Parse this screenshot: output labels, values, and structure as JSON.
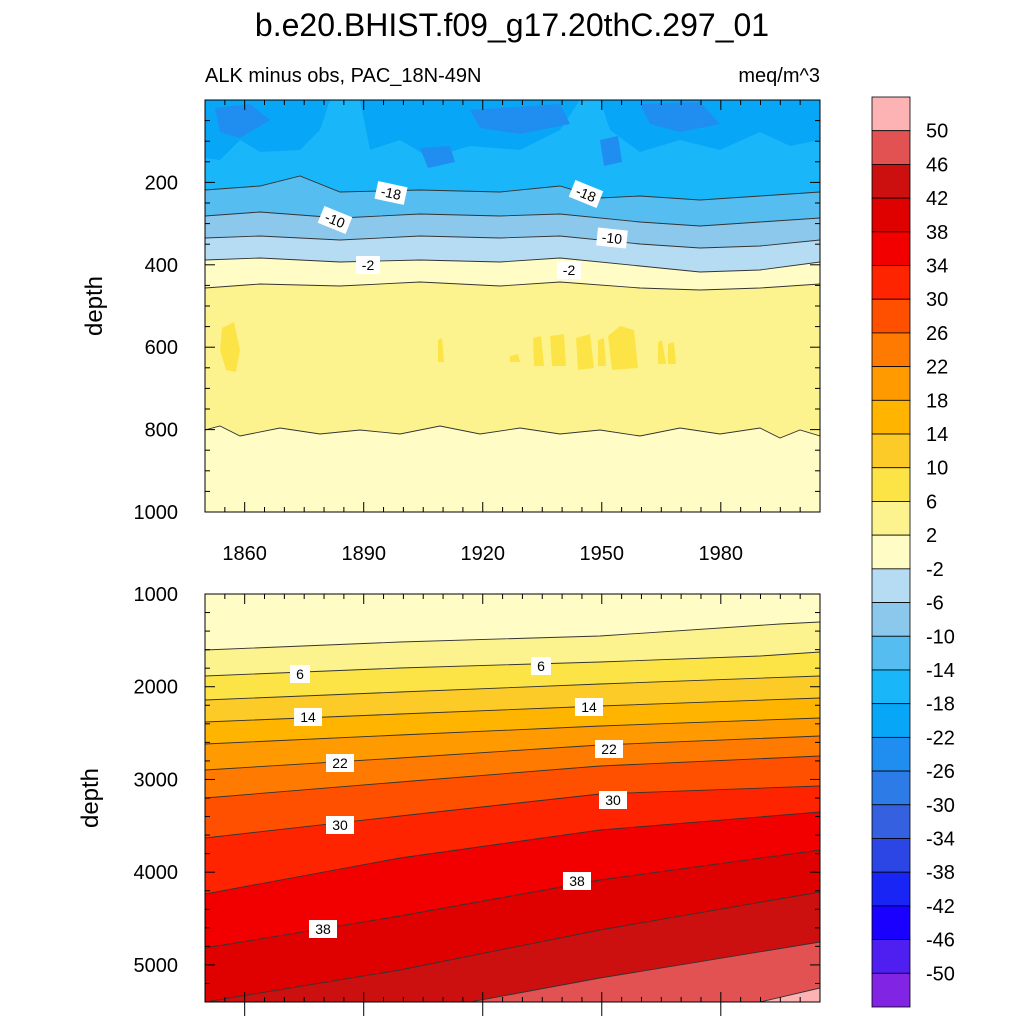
{
  "chart_data": {
    "type": "heatmap",
    "title": "b.e20.BHIST.f09_g17.20thC.297_01",
    "left_subtitle": "ALK minus obs, PAC_18N-49N",
    "right_subtitle": "meq/m^3",
    "ylabel": "depth",
    "xlim": [
      1850,
      2005
    ],
    "x_ticks": [
      "1860",
      "1890",
      "1920",
      "1950",
      "1980"
    ],
    "colorbar": {
      "labels": [
        "50",
        "46",
        "42",
        "38",
        "34",
        "30",
        "26",
        "22",
        "18",
        "14",
        "10",
        "6",
        "2",
        "-2",
        "-6",
        "-10",
        "-14",
        "-18",
        "-22",
        "-26",
        "-30",
        "-34",
        "-38",
        "-42",
        "-46",
        "-50"
      ],
      "colors": [
        "#fdb3b3",
        "#e25252",
        "#cc1010",
        "#df0000",
        "#f20000",
        "#ff2400",
        "#ff5000",
        "#ff7a00",
        "#ff9a00",
        "#ffb400",
        "#fdcb28",
        "#fde446",
        "#fdf38e",
        "#fffcc5",
        "#b6dcf4",
        "#8cc8ec",
        "#55bdf0",
        "#19b7fa",
        "#08a6f7",
        "#1f8ef0",
        "#2c7be7",
        "#3560df",
        "#2b46e4",
        "#1825f5",
        "#1a00ff",
        "#4f1ff2",
        "#8224e3"
      ]
    },
    "panels": [
      {
        "ylim": [
          1000,
          0
        ],
        "y_ticks": [
          "200",
          "400",
          "600",
          "800",
          "1000"
        ],
        "contour_labels": [
          "-18",
          "-18",
          "-10",
          "-10",
          "-2",
          "-2"
        ]
      },
      {
        "ylim": [
          5400,
          1000
        ],
        "y_ticks": [
          "1000",
          "2000",
          "3000",
          "4000",
          "5000"
        ],
        "contour_labels": [
          "6",
          "6",
          "14",
          "14",
          "22",
          "22",
          "30",
          "30",
          "38",
          "38"
        ]
      }
    ]
  }
}
